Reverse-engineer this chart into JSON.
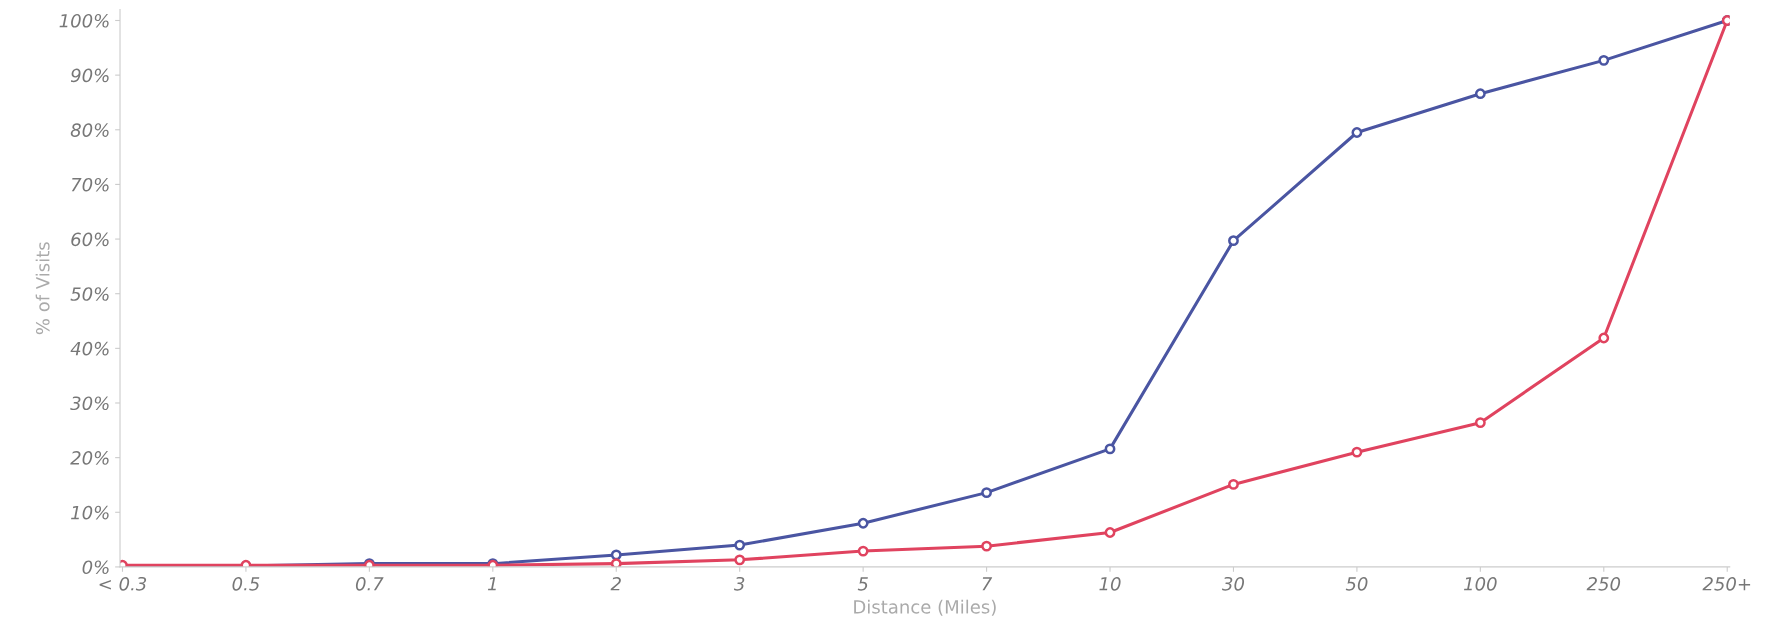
{
  "chart_data": {
    "type": "line",
    "xlabel": "Distance (Miles)",
    "ylabel": "% of Visits",
    "categories": [
      "< 0.3",
      "0.5",
      "0.7",
      "1",
      "2",
      "3",
      "5",
      "7",
      "10",
      "30",
      "50",
      "100",
      "250",
      "250+"
    ],
    "series": [
      {
        "color": "#4a55a2",
        "values": [
          0,
          0.2,
          0.6,
          0.6,
          2.2,
          4,
          8,
          13.6,
          21.6,
          59.7,
          79.5,
          86.6,
          92.7,
          100
        ]
      },
      {
        "color": "#e0435f",
        "values": [
          0.3,
          0.3,
          0.3,
          0.3,
          0.6,
          1.3,
          2.9,
          3.8,
          6.3,
          15.1,
          21,
          26.4,
          41.9,
          100
        ]
      }
    ],
    "ylim": [
      0,
      102
    ],
    "yticks": [
      {
        "value": 0,
        "label": "0%"
      },
      {
        "value": 10,
        "label": "10%"
      },
      {
        "value": 20,
        "label": "20%"
      },
      {
        "value": 30,
        "label": "30%"
      },
      {
        "value": 40,
        "label": "40%"
      },
      {
        "value": 50,
        "label": "50%"
      },
      {
        "value": 60,
        "label": "60%"
      },
      {
        "value": 70,
        "label": "70%"
      },
      {
        "value": 80,
        "label": "80%"
      },
      {
        "value": 90,
        "label": "90%"
      },
      {
        "value": 100,
        "label": "100%"
      }
    ],
    "grid": false,
    "legend": false,
    "marker": "circle",
    "line_style": "solid"
  }
}
